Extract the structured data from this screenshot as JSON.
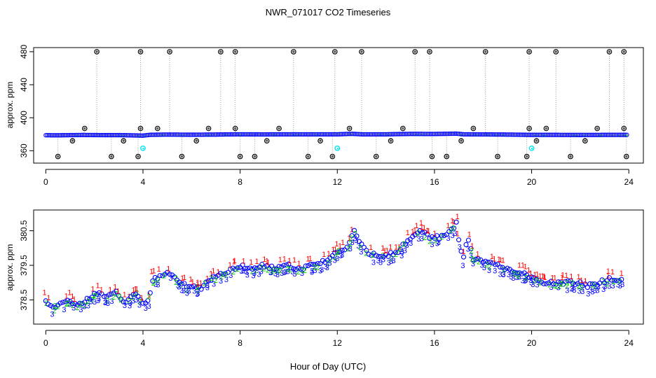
{
  "title": "NWR_071017  CO2 Timeseries",
  "xlabel": "Hour of Day (UTC)",
  "colors": {
    "marker_black": "#000000",
    "marker_blue": "#0000ff",
    "marker_cyan": "#00e5ee",
    "marker_green": "#00cc00",
    "label_red": "#ff0000",
    "label_green": "#00cc00",
    "label_blue": "#0000ff",
    "dotted_line": "#999999"
  },
  "chart_data": [
    {
      "type": "scatter",
      "ylabel": "approx. ppm",
      "xlim": [
        -0.5,
        24.6
      ],
      "ylim": [
        345,
        485
      ],
      "xticks": [
        0,
        4,
        8,
        12,
        16,
        20,
        24
      ],
      "yticks": [
        360,
        400,
        440,
        480
      ],
      "ytick_labels": [
        "360",
        "400",
        "440",
        "480"
      ],
      "baseline_ppm": [
        [
          0,
          378.8
        ],
        [
          0.5,
          378.7
        ],
        [
          1,
          378.9
        ],
        [
          1.5,
          379.1
        ],
        [
          2,
          379.0
        ],
        [
          2.5,
          378.9
        ],
        [
          3,
          378.9
        ],
        [
          3.5,
          378.7
        ],
        [
          4,
          378.3
        ],
        [
          4.3,
          379.3
        ],
        [
          5,
          379.6
        ],
        [
          5.5,
          379.5
        ],
        [
          6,
          379.4
        ],
        [
          6.5,
          379.5
        ],
        [
          7,
          379.6
        ],
        [
          7.5,
          379.8
        ],
        [
          8,
          379.9
        ],
        [
          9,
          379.8
        ],
        [
          10,
          379.9
        ],
        [
          11,
          379.9
        ],
        [
          12,
          379.9
        ],
        [
          12.6,
          380.5
        ],
        [
          13,
          379.9
        ],
        [
          14,
          379.9
        ],
        [
          15,
          380.4
        ],
        [
          16,
          380.3
        ],
        [
          16.9,
          380.7
        ],
        [
          17.2,
          379.9
        ],
        [
          18,
          379.8
        ],
        [
          19,
          379.6
        ],
        [
          20,
          379.2
        ],
        [
          21,
          379.2
        ],
        [
          22,
          379.1
        ],
        [
          23,
          379.2
        ],
        [
          23.8,
          379.2
        ]
      ],
      "high_points": [
        [
          2.1,
          480
        ],
        [
          3.9,
          480
        ],
        [
          5.1,
          480
        ],
        [
          7.2,
          480
        ],
        [
          7.8,
          480
        ],
        [
          10.2,
          480
        ],
        [
          11.9,
          480
        ],
        [
          13.0,
          480
        ],
        [
          15.2,
          480
        ],
        [
          15.8,
          480
        ],
        [
          18.1,
          480
        ],
        [
          19.9,
          480
        ],
        [
          21.0,
          480
        ],
        [
          23.2,
          480
        ],
        [
          23.8,
          480
        ],
        [
          1.6,
          387
        ],
        [
          3.9,
          387
        ],
        [
          4.6,
          387
        ],
        [
          6.7,
          387
        ],
        [
          7.8,
          387
        ],
        [
          9.6,
          387
        ],
        [
          12.5,
          387
        ],
        [
          14.7,
          387
        ],
        [
          17.6,
          387
        ],
        [
          19.9,
          387
        ],
        [
          20.6,
          387
        ],
        [
          22.7,
          387
        ],
        [
          23.8,
          387
        ]
      ],
      "low_points": [
        [
          0.5,
          353
        ],
        [
          2.7,
          353
        ],
        [
          3.8,
          353
        ],
        [
          5.6,
          353
        ],
        [
          8.0,
          353
        ],
        [
          8.6,
          353
        ],
        [
          10.8,
          353
        ],
        [
          11.8,
          353
        ],
        [
          13.6,
          353
        ],
        [
          15.9,
          353
        ],
        [
          16.5,
          353
        ],
        [
          18.6,
          353
        ],
        [
          19.8,
          353
        ],
        [
          21.6,
          353
        ],
        [
          23.9,
          353
        ],
        [
          1.1,
          372
        ],
        [
          3.2,
          372
        ],
        [
          6.2,
          372
        ],
        [
          9.1,
          372
        ],
        [
          11.3,
          372
        ],
        [
          14.2,
          372
        ],
        [
          17.1,
          372
        ],
        [
          20.2,
          372
        ],
        [
          22.2,
          372
        ]
      ],
      "cyan_points": [
        [
          4.0,
          363
        ],
        [
          12.0,
          363
        ],
        [
          20.0,
          363
        ]
      ]
    },
    {
      "type": "scatter",
      "ylabel": "approx. ppm",
      "xlim": [
        -0.5,
        24.6
      ],
      "ylim": [
        377.8,
        381.1
      ],
      "xticks": [
        0,
        4,
        8,
        12,
        16,
        20,
        24
      ],
      "yticks": [
        378.5,
        379.5,
        380.5
      ],
      "ytick_labels": [
        "378.5",
        "379.5",
        "380.5"
      ],
      "series_labels": [
        "1",
        "2",
        "3"
      ],
      "trend_ppm": [
        [
          0,
          378.5
        ],
        [
          0.3,
          378.3
        ],
        [
          0.6,
          378.4
        ],
        [
          1,
          378.5
        ],
        [
          1.3,
          378.3
        ],
        [
          1.7,
          378.5
        ],
        [
          2.1,
          378.7
        ],
        [
          2.5,
          378.6
        ],
        [
          2.9,
          378.7
        ],
        [
          3.3,
          378.4
        ],
        [
          3.7,
          378.7
        ],
        [
          4,
          378.4
        ],
        [
          4.25,
          378.5
        ],
        [
          4.4,
          379.1
        ],
        [
          4.8,
          379.2
        ],
        [
          5.1,
          379.3
        ],
        [
          5.4,
          379.1
        ],
        [
          5.8,
          378.9
        ],
        [
          6.1,
          378.9
        ],
        [
          6.4,
          378.8
        ],
        [
          6.7,
          379.1
        ],
        [
          7.1,
          379.2
        ],
        [
          7.5,
          379.3
        ],
        [
          8,
          379.5
        ],
        [
          8.5,
          379.4
        ],
        [
          9,
          379.5
        ],
        [
          9.5,
          379.4
        ],
        [
          10,
          379.5
        ],
        [
          10.5,
          379.4
        ],
        [
          11,
          379.5
        ],
        [
          11.5,
          379.6
        ],
        [
          12,
          379.9
        ],
        [
          12.4,
          380.0
        ],
        [
          12.7,
          380.5
        ],
        [
          13.0,
          380.1
        ],
        [
          13.3,
          379.8
        ],
        [
          13.7,
          379.8
        ],
        [
          14.1,
          379.8
        ],
        [
          14.5,
          379.9
        ],
        [
          15.0,
          380.3
        ],
        [
          15.4,
          380.5
        ],
        [
          15.8,
          380.3
        ],
        [
          16.2,
          380.3
        ],
        [
          16.6,
          380.5
        ],
        [
          16.9,
          380.7
        ],
        [
          17.05,
          380.0
        ],
        [
          17.2,
          379.7
        ],
        [
          17.35,
          380.3
        ],
        [
          17.6,
          379.7
        ],
        [
          18.1,
          379.6
        ],
        [
          18.5,
          379.5
        ],
        [
          19.0,
          379.4
        ],
        [
          19.5,
          379.3
        ],
        [
          19.9,
          379.2
        ],
        [
          20.4,
          379.0
        ],
        [
          20.8,
          379.0
        ],
        [
          21.3,
          379.0
        ],
        [
          21.8,
          379.0
        ],
        [
          22.3,
          378.9
        ],
        [
          22.8,
          379.0
        ],
        [
          23.2,
          379.1
        ],
        [
          23.7,
          379.1
        ]
      ]
    }
  ]
}
